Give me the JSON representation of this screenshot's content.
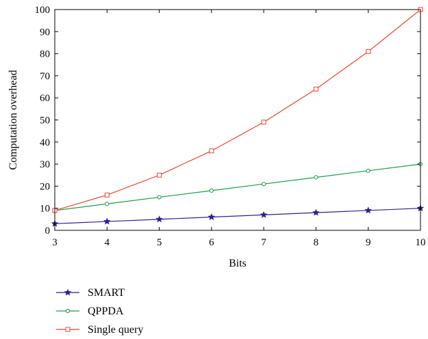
{
  "chart_data": {
    "type": "line",
    "title": "",
    "xlabel": "Bits",
    "ylabel": "Computation overhead",
    "xlim": [
      3,
      10
    ],
    "ylim": [
      0,
      100
    ],
    "x": [
      3,
      4,
      5,
      6,
      7,
      8,
      9,
      10
    ],
    "xticks": [
      "3",
      "4",
      "5",
      "6",
      "7",
      "8",
      "9",
      "10"
    ],
    "yticks": [
      "0",
      "10",
      "20",
      "30",
      "40",
      "50",
      "60",
      "70",
      "80",
      "90",
      "100"
    ],
    "grid": false,
    "legend_position": "bottom-left",
    "series": [
      {
        "name": "SMART",
        "color": "#2e1f8f",
        "marker": "star",
        "values": [
          3,
          4,
          5,
          6,
          7,
          8,
          9,
          10
        ]
      },
      {
        "name": "QPPDA",
        "color": "#1a9a4a",
        "marker": "circle",
        "values": [
          9,
          12,
          15,
          18,
          21,
          24,
          27,
          30
        ]
      },
      {
        "name": "Single query",
        "color": "#e8452c",
        "marker": "square",
        "values": [
          9,
          16,
          25,
          36,
          49,
          64,
          81,
          100
        ]
      }
    ]
  }
}
